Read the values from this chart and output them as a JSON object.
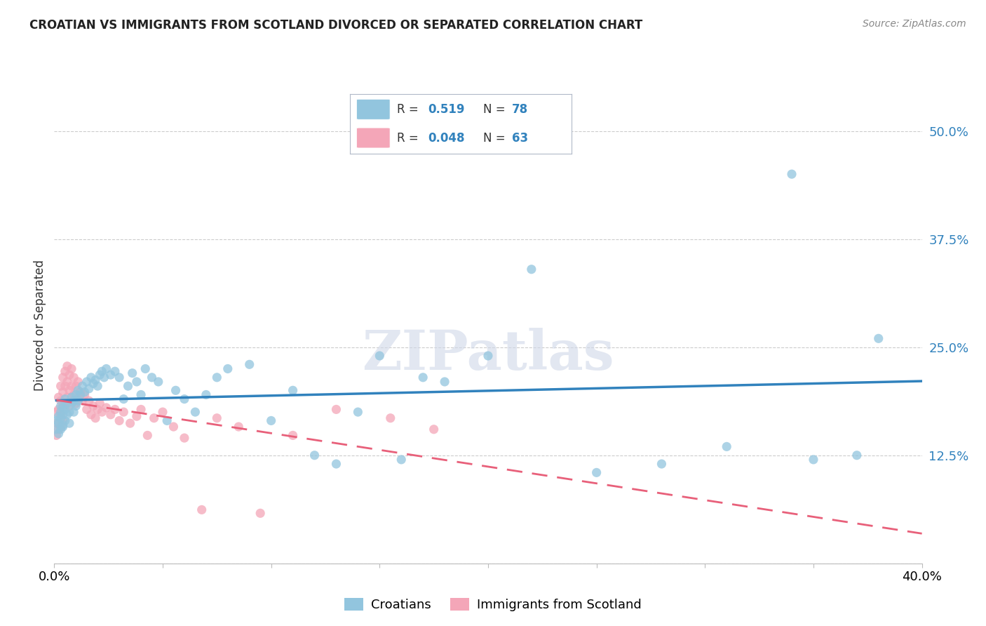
{
  "title": "CROATIAN VS IMMIGRANTS FROM SCOTLAND DIVORCED OR SEPARATED CORRELATION CHART",
  "source": "Source: ZipAtlas.com",
  "ylabel": "Divorced or Separated",
  "xlim": [
    0.0,
    0.4
  ],
  "ylim": [
    0.0,
    0.55
  ],
  "ytick_values": [
    0.0,
    0.125,
    0.25,
    0.375,
    0.5
  ],
  "xtick_values": [
    0.0,
    0.05,
    0.1,
    0.15,
    0.2,
    0.25,
    0.3,
    0.35,
    0.4
  ],
  "R_croatian": 0.519,
  "N_croatian": 78,
  "R_scotland": 0.048,
  "N_scotland": 63,
  "color_blue": "#92c5de",
  "color_pink": "#f4a6b8",
  "color_blue_line": "#3182bd",
  "color_pink_line": "#e8607a",
  "watermark": "ZIPatlas",
  "legend_label_blue": "Croatians",
  "legend_label_pink": "Immigrants from Scotland",
  "croatian_x": [
    0.001,
    0.001,
    0.002,
    0.002,
    0.002,
    0.003,
    0.003,
    0.003,
    0.003,
    0.004,
    0.004,
    0.004,
    0.004,
    0.005,
    0.005,
    0.005,
    0.006,
    0.006,
    0.007,
    0.007,
    0.008,
    0.008,
    0.009,
    0.009,
    0.01,
    0.01,
    0.011,
    0.011,
    0.012,
    0.013,
    0.014,
    0.015,
    0.016,
    0.017,
    0.018,
    0.019,
    0.02,
    0.021,
    0.022,
    0.023,
    0.024,
    0.026,
    0.028,
    0.03,
    0.032,
    0.034,
    0.036,
    0.038,
    0.04,
    0.042,
    0.045,
    0.048,
    0.052,
    0.056,
    0.06,
    0.065,
    0.07,
    0.075,
    0.08,
    0.09,
    0.1,
    0.11,
    0.12,
    0.13,
    0.14,
    0.15,
    0.16,
    0.17,
    0.18,
    0.2,
    0.22,
    0.25,
    0.28,
    0.31,
    0.34,
    0.35,
    0.37,
    0.38
  ],
  "croatian_y": [
    0.155,
    0.165,
    0.15,
    0.162,
    0.17,
    0.155,
    0.168,
    0.175,
    0.182,
    0.16,
    0.172,
    0.18,
    0.158,
    0.165,
    0.178,
    0.19,
    0.172,
    0.185,
    0.162,
    0.175,
    0.185,
    0.192,
    0.175,
    0.188,
    0.182,
    0.195,
    0.188,
    0.2,
    0.195,
    0.205,
    0.198,
    0.21,
    0.202,
    0.215,
    0.208,
    0.212,
    0.205,
    0.218,
    0.222,
    0.215,
    0.225,
    0.218,
    0.222,
    0.215,
    0.19,
    0.205,
    0.22,
    0.21,
    0.195,
    0.225,
    0.215,
    0.21,
    0.165,
    0.2,
    0.19,
    0.175,
    0.195,
    0.215,
    0.225,
    0.23,
    0.165,
    0.2,
    0.125,
    0.115,
    0.175,
    0.24,
    0.12,
    0.215,
    0.21,
    0.24,
    0.34,
    0.105,
    0.115,
    0.135,
    0.45,
    0.12,
    0.125,
    0.26
  ],
  "scotland_x": [
    0.001,
    0.001,
    0.001,
    0.002,
    0.002,
    0.002,
    0.003,
    0.003,
    0.003,
    0.003,
    0.004,
    0.004,
    0.004,
    0.004,
    0.005,
    0.005,
    0.005,
    0.006,
    0.006,
    0.006,
    0.007,
    0.007,
    0.007,
    0.008,
    0.008,
    0.009,
    0.009,
    0.01,
    0.01,
    0.011,
    0.011,
    0.012,
    0.013,
    0.014,
    0.015,
    0.016,
    0.017,
    0.018,
    0.019,
    0.02,
    0.021,
    0.022,
    0.024,
    0.026,
    0.028,
    0.03,
    0.032,
    0.035,
    0.038,
    0.04,
    0.043,
    0.046,
    0.05,
    0.055,
    0.06,
    0.068,
    0.075,
    0.085,
    0.095,
    0.11,
    0.13,
    0.155,
    0.175
  ],
  "scotland_y": [
    0.175,
    0.162,
    0.148,
    0.192,
    0.178,
    0.155,
    0.205,
    0.188,
    0.172,
    0.158,
    0.215,
    0.198,
    0.182,
    0.165,
    0.222,
    0.205,
    0.185,
    0.228,
    0.21,
    0.192,
    0.218,
    0.2,
    0.182,
    0.225,
    0.205,
    0.215,
    0.195,
    0.205,
    0.185,
    0.21,
    0.19,
    0.198,
    0.188,
    0.195,
    0.178,
    0.188,
    0.172,
    0.182,
    0.168,
    0.178,
    0.185,
    0.175,
    0.18,
    0.172,
    0.178,
    0.165,
    0.175,
    0.162,
    0.17,
    0.178,
    0.148,
    0.168,
    0.175,
    0.158,
    0.145,
    0.062,
    0.168,
    0.158,
    0.058,
    0.148,
    0.178,
    0.168,
    0.155
  ]
}
